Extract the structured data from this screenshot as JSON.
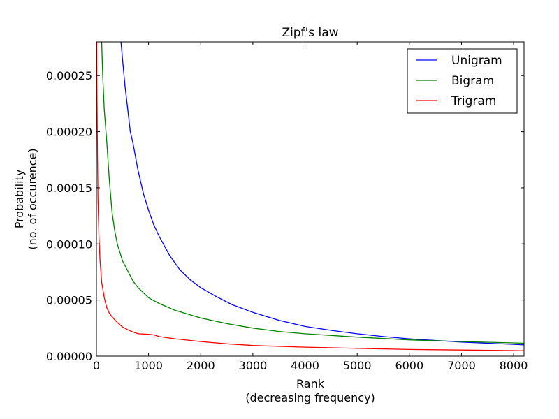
{
  "chart_data": {
    "type": "line",
    "title": "Zipf's law",
    "xlabel": [
      "Rank",
      "(decreasing frequency)"
    ],
    "ylabel": [
      "Probability",
      "(no. of occurence)"
    ],
    "xlim": [
      0,
      8200
    ],
    "ylim": [
      0,
      0.00028
    ],
    "xticks": [
      0,
      1000,
      2000,
      3000,
      4000,
      5000,
      6000,
      7000,
      8000
    ],
    "xtick_labels": [
      "0",
      "1000",
      "2000",
      "3000",
      "4000",
      "5000",
      "6000",
      "7000",
      "8000"
    ],
    "yticks": [
      0,
      5e-05,
      0.0001,
      0.00015,
      0.0002,
      0.00025
    ],
    "ytick_labels": [
      "0.00000",
      "0.00005",
      "0.00010",
      "0.00015",
      "0.00020",
      "0.00025"
    ],
    "grid": false,
    "legend_position": "top-right",
    "series": [
      {
        "name": "Unigram",
        "color": "#0000ff",
        "x": [
          470,
          500,
          550,
          600,
          650,
          700,
          800,
          900,
          1000,
          1100,
          1200,
          1400,
          1600,
          1800,
          2000,
          2300,
          2600,
          3000,
          3500,
          4000,
          4500,
          5000,
          5500,
          6000,
          6500,
          7000,
          7500,
          8000,
          8200
        ],
        "y": [
          0.00028,
          0.000265,
          0.00024,
          0.00022,
          0.0002,
          0.00019,
          0.000165,
          0.000145,
          0.00013,
          0.000117,
          0.000107,
          9e-05,
          7.7e-05,
          6.8e-05,
          6.1e-05,
          5.3e-05,
          4.6e-05,
          3.9e-05,
          3.2e-05,
          2.65e-05,
          2.3e-05,
          2e-05,
          1.75e-05,
          1.55e-05,
          1.4e-05,
          1.25e-05,
          1.15e-05,
          1.05e-05,
          1e-05
        ]
      },
      {
        "name": "Bigram",
        "color": "#008000",
        "x": [
          100,
          120,
          150,
          200,
          250,
          300,
          350,
          400,
          500,
          600,
          700,
          800,
          1000,
          1200,
          1500,
          2000,
          2500,
          3000,
          3500,
          4000,
          5000,
          6000,
          7000,
          8000,
          8200
        ],
        "y": [
          0.00028,
          0.00025,
          0.00022,
          0.00019,
          0.000155,
          0.000128,
          0.000112,
          0.0001,
          8.5e-05,
          7.6e-05,
          6.7e-05,
          6.1e-05,
          5.2e-05,
          4.7e-05,
          4.1e-05,
          3.4e-05,
          2.9e-05,
          2.5e-05,
          2.2e-05,
          2e-05,
          1.7e-05,
          1.45e-05,
          1.3e-05,
          1.18e-05,
          1.15e-05
        ]
      },
      {
        "name": "Trigram",
        "color": "#ff0000",
        "x": [
          5,
          10,
          20,
          30,
          50,
          70,
          100,
          150,
          200,
          250,
          300,
          400,
          500,
          600,
          700,
          800,
          1000,
          1100,
          1200,
          1500,
          2000,
          2500,
          3000,
          4000,
          5000,
          6000,
          7000,
          8000,
          8200
        ],
        "y": [
          0.00028,
          0.00024,
          0.00018,
          0.00014,
          0.000105,
          8.5e-05,
          6.6e-05,
          5.2e-05,
          4.3e-05,
          3.8e-05,
          3.5e-05,
          3e-05,
          2.6e-05,
          2.35e-05,
          2.15e-05,
          2e-05,
          1.95e-05,
          1.9e-05,
          1.75e-05,
          1.55e-05,
          1.3e-05,
          1.1e-05,
          9.5e-06,
          8e-06,
          7e-06,
          6e-06,
          5.5e-06,
          5e-06,
          4.8e-06
        ]
      }
    ]
  }
}
